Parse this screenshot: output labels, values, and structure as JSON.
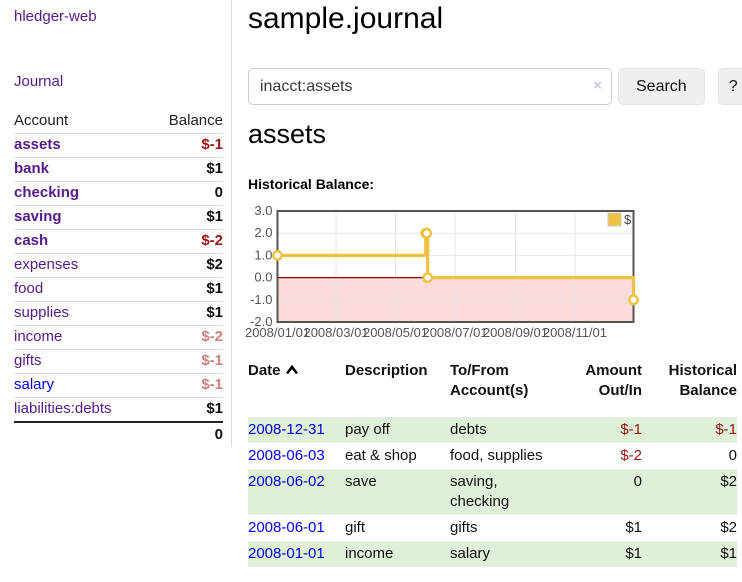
{
  "app": {
    "brand": "hledger-web"
  },
  "sidebar": {
    "journal_link": "Journal",
    "accounts": {
      "header_account": "Account",
      "header_balance": "Balance",
      "rows": [
        {
          "name": "assets",
          "balance": "$-1",
          "indent": 1,
          "bold": true,
          "link_color": "purple",
          "balance_style": "neg-strong"
        },
        {
          "name": "bank",
          "balance": "$1",
          "indent": 2,
          "bold": true,
          "link_color": "purple",
          "balance_style": "pos"
        },
        {
          "name": "checking",
          "balance": "0",
          "indent": 3,
          "bold": true,
          "link_color": "purple",
          "balance_style": "pos"
        },
        {
          "name": "saving",
          "balance": "$1",
          "indent": 3,
          "bold": true,
          "link_color": "purple",
          "balance_style": "pos"
        },
        {
          "name": "cash",
          "balance": "$-2",
          "indent": 2,
          "bold": true,
          "link_color": "purple",
          "balance_style": "neg-strong"
        },
        {
          "name": "expenses",
          "balance": "$2",
          "indent": 1,
          "bold": false,
          "link_color": "purple",
          "balance_style": "pos"
        },
        {
          "name": "food",
          "balance": "$1",
          "indent": 2,
          "bold": false,
          "link_color": "purple",
          "balance_style": "pos"
        },
        {
          "name": "supplies",
          "balance": "$1",
          "indent": 2,
          "bold": false,
          "link_color": "purple",
          "balance_style": "pos"
        },
        {
          "name": "income",
          "balance": "$-2",
          "indent": 1,
          "bold": false,
          "link_color": "purple",
          "balance_style": "neg-soft"
        },
        {
          "name": "gifts",
          "balance": "$-1",
          "indent": 2,
          "bold": false,
          "link_color": "purple",
          "balance_style": "neg-soft"
        },
        {
          "name": "salary",
          "balance": "$-1",
          "indent": 2,
          "bold": false,
          "link_color": "blue",
          "balance_style": "neg-soft"
        },
        {
          "name": "liabilities:debts",
          "balance": "$1",
          "indent": 1,
          "bold": false,
          "link_color": "purple",
          "balance_style": "pos"
        }
      ],
      "total": "0"
    }
  },
  "main": {
    "title": "sample.journal",
    "search": {
      "value": "inacct:assets",
      "clear": "×",
      "search_button": "Search",
      "help_button": "?"
    },
    "account_heading": "assets",
    "chart_title": "Historical Balance:"
  },
  "chart_data": {
    "type": "line",
    "step": true,
    "title": "Historical Balance:",
    "x_domain": [
      "2008/01/01",
      "2008/12/31"
    ],
    "ylim": [
      -2,
      3
    ],
    "y_ticks": [
      "3.0",
      "2.0",
      "1.0",
      "0.0",
      "-1.0",
      "-2.0"
    ],
    "x_ticks": [
      "2008/01/01",
      "2008/03/01",
      "2008/05/01",
      "2008/07/01",
      "2008/09/01",
      "2008/11/01"
    ],
    "grid": true,
    "legend_position": "top-right",
    "legend": [
      {
        "label": "$",
        "color": "#EDC240"
      }
    ],
    "series": [
      {
        "name": "$",
        "color": "#EDC240",
        "points": [
          [
            "2008/01/01",
            1
          ],
          [
            "2008/06/01",
            2
          ],
          [
            "2008/06/02",
            2
          ],
          [
            "2008/06/03",
            0
          ],
          [
            "2008/12/31",
            -1
          ]
        ]
      }
    ],
    "negative_region_color": "#fbdada",
    "zero_line_color": "#8b0000"
  },
  "register": {
    "headers": {
      "date": "Date",
      "description": "Description",
      "accounts": "To/From\nAccount(s)",
      "amount": "Amount\nOut/In",
      "balance": "Historical\nBalance"
    },
    "rows": [
      {
        "date": "2008-12-31",
        "description": "pay off",
        "accounts": [
          "debts"
        ],
        "amount": "$-1",
        "amount_negative": true,
        "balance": "$-1",
        "balance_negative": true
      },
      {
        "date": "2008-06-03",
        "description": "eat & shop",
        "accounts": [
          "food, supplies"
        ],
        "amount": "$-2",
        "amount_negative": true,
        "balance": "0",
        "balance_negative": false
      },
      {
        "date": "2008-06-02",
        "description": "save",
        "accounts": [
          "saving,",
          "checking"
        ],
        "amount": "0",
        "amount_negative": false,
        "balance": "$2",
        "balance_negative": false
      },
      {
        "date": "2008-06-01",
        "description": "gift",
        "accounts": [
          "gifts"
        ],
        "amount": "$1",
        "amount_negative": false,
        "balance": "$2",
        "balance_negative": false
      },
      {
        "date": "2008-01-01",
        "description": "income",
        "accounts": [
          "salary"
        ],
        "amount": "$1",
        "amount_negative": false,
        "balance": "$1",
        "balance_negative": false
      }
    ]
  },
  "colors": {
    "link_visited_purple": "#551A8B",
    "link_blue": "#0000EE",
    "negative_strong": "#9a1414",
    "negative_soft": "#cf7f7f",
    "row_stripe_green": "#dff0d8",
    "series_gold": "#EDC240",
    "chart_frame": "#555555"
  }
}
